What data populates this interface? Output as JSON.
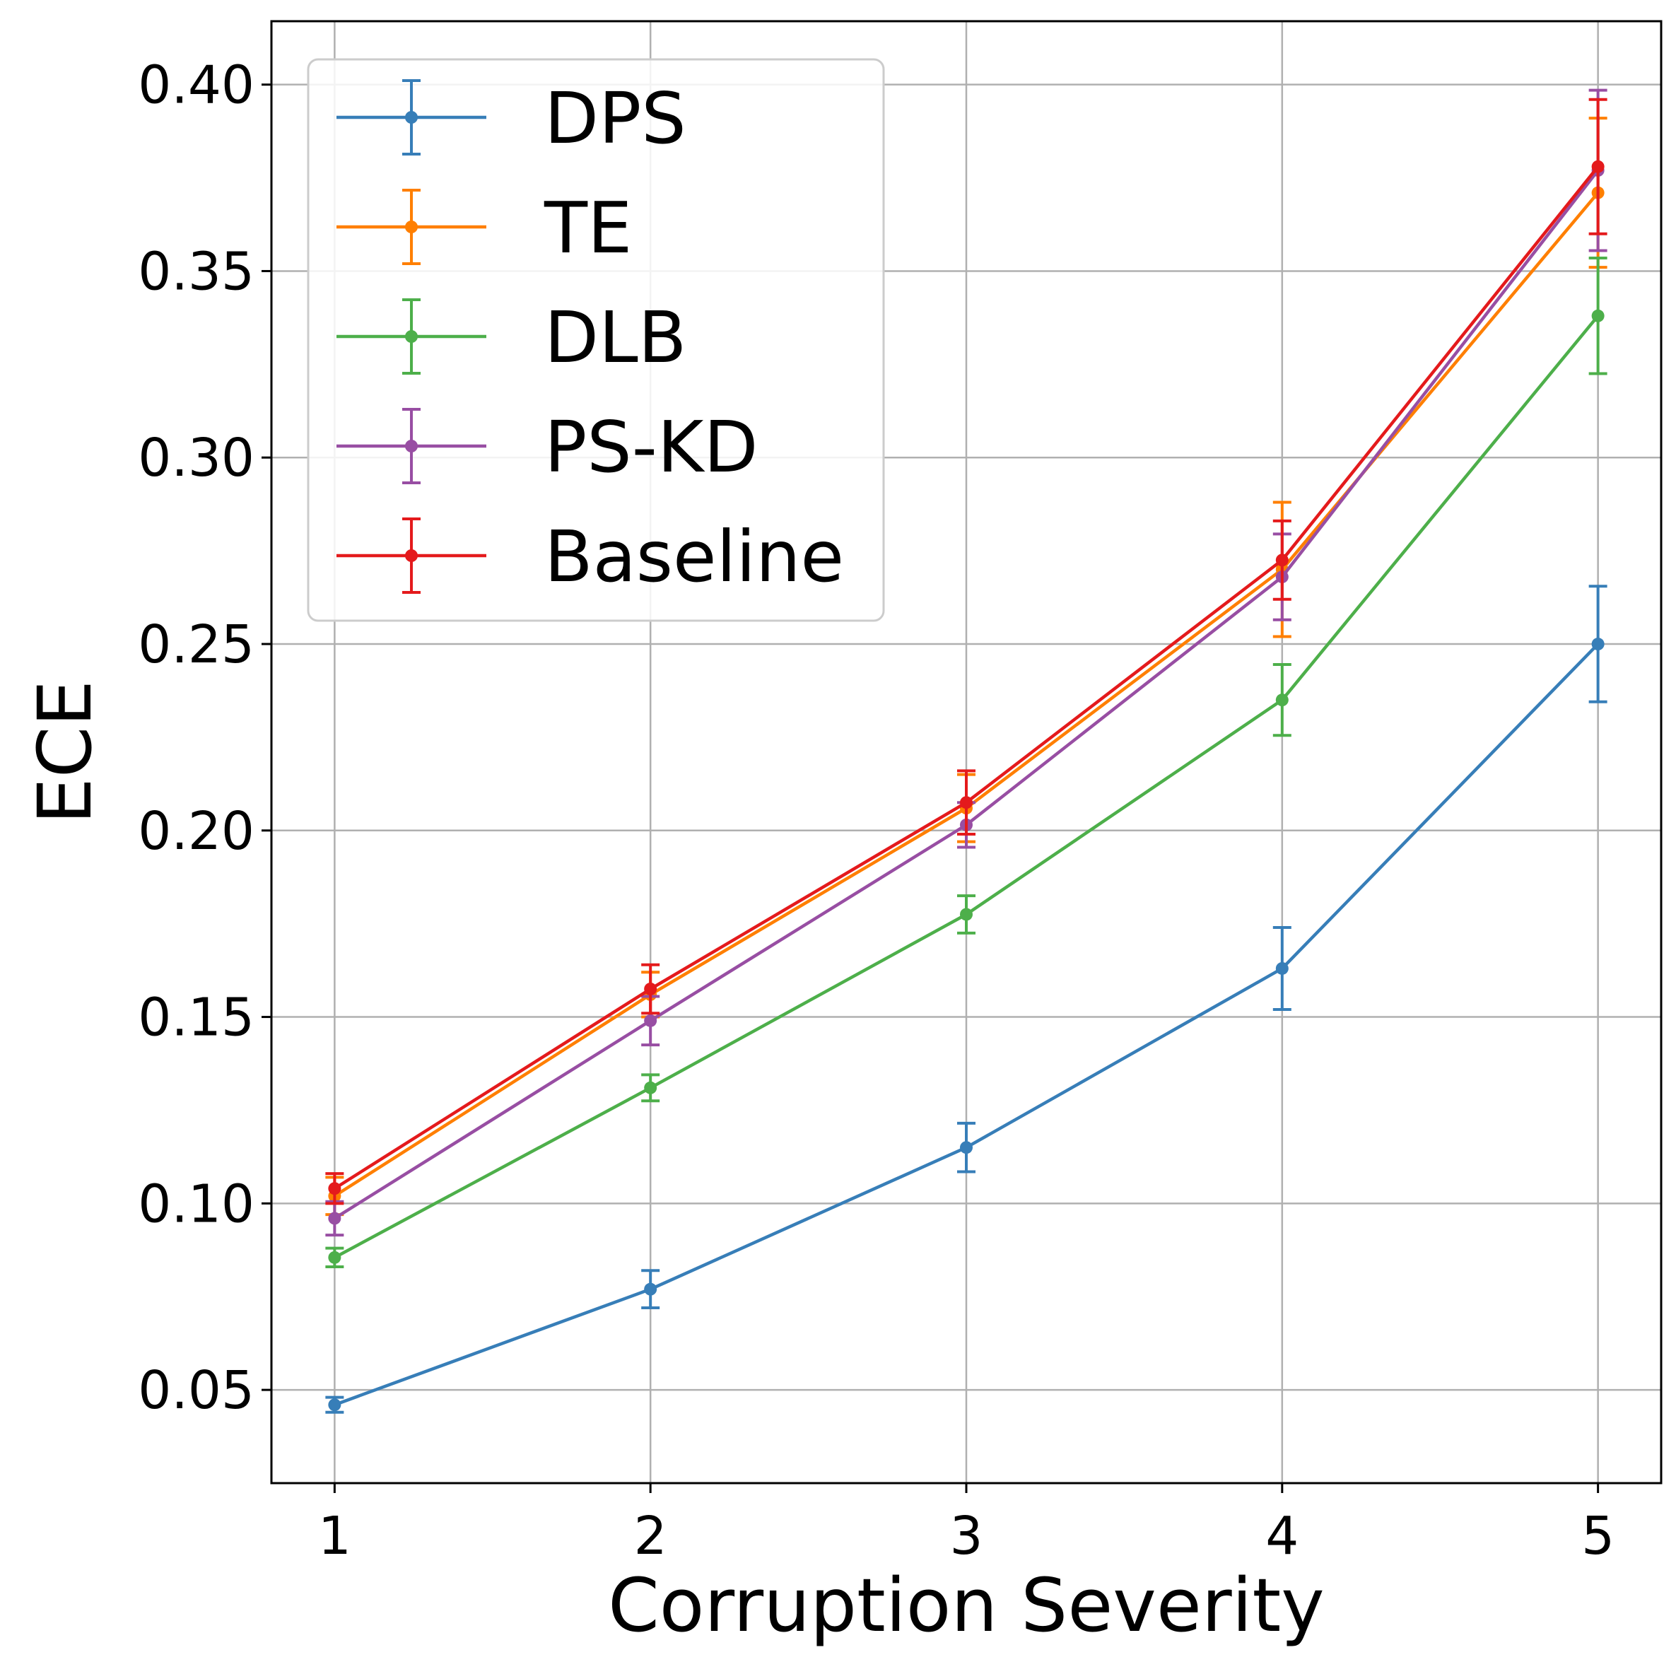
{
  "chart_data": {
    "type": "line",
    "xlabel": "Corruption Severity",
    "ylabel": "ECE",
    "x": [
      1,
      2,
      3,
      4,
      5
    ],
    "xticks": [
      "1",
      "2",
      "3",
      "4",
      "5"
    ],
    "yticks": [
      "0.05",
      "0.10",
      "0.15",
      "0.20",
      "0.25",
      "0.30",
      "0.35",
      "0.40"
    ],
    "xlim": [
      0.8,
      5.2
    ],
    "ylim": [
      0.025,
      0.417
    ],
    "grid": true,
    "legend_position": "upper-left",
    "series": [
      {
        "name": "DPS",
        "color": "#377eb8",
        "values": [
          0.046,
          0.077,
          0.115,
          0.163,
          0.25
        ],
        "errors": [
          0.002,
          0.005,
          0.0065,
          0.011,
          0.0155
        ]
      },
      {
        "name": "TE",
        "color": "#ff7f00",
        "values": [
          0.102,
          0.156,
          0.206,
          0.27,
          0.371
        ],
        "errors": [
          0.005,
          0.006,
          0.009,
          0.018,
          0.02
        ]
      },
      {
        "name": "DLB",
        "color": "#4daf4a",
        "values": [
          0.0855,
          0.131,
          0.1775,
          0.235,
          0.338
        ],
        "errors": [
          0.0025,
          0.0035,
          0.005,
          0.0095,
          0.0155
        ]
      },
      {
        "name": "PS-KD",
        "color": "#984ea3",
        "values": [
          0.096,
          0.149,
          0.2015,
          0.268,
          0.377
        ],
        "errors": [
          0.0045,
          0.0065,
          0.006,
          0.0115,
          0.0215
        ]
      },
      {
        "name": "Baseline",
        "color": "#e41a1c",
        "values": [
          0.104,
          0.1575,
          0.2075,
          0.2725,
          0.378
        ],
        "errors": [
          0.004,
          0.0065,
          0.0085,
          0.0105,
          0.018
        ]
      }
    ]
  }
}
